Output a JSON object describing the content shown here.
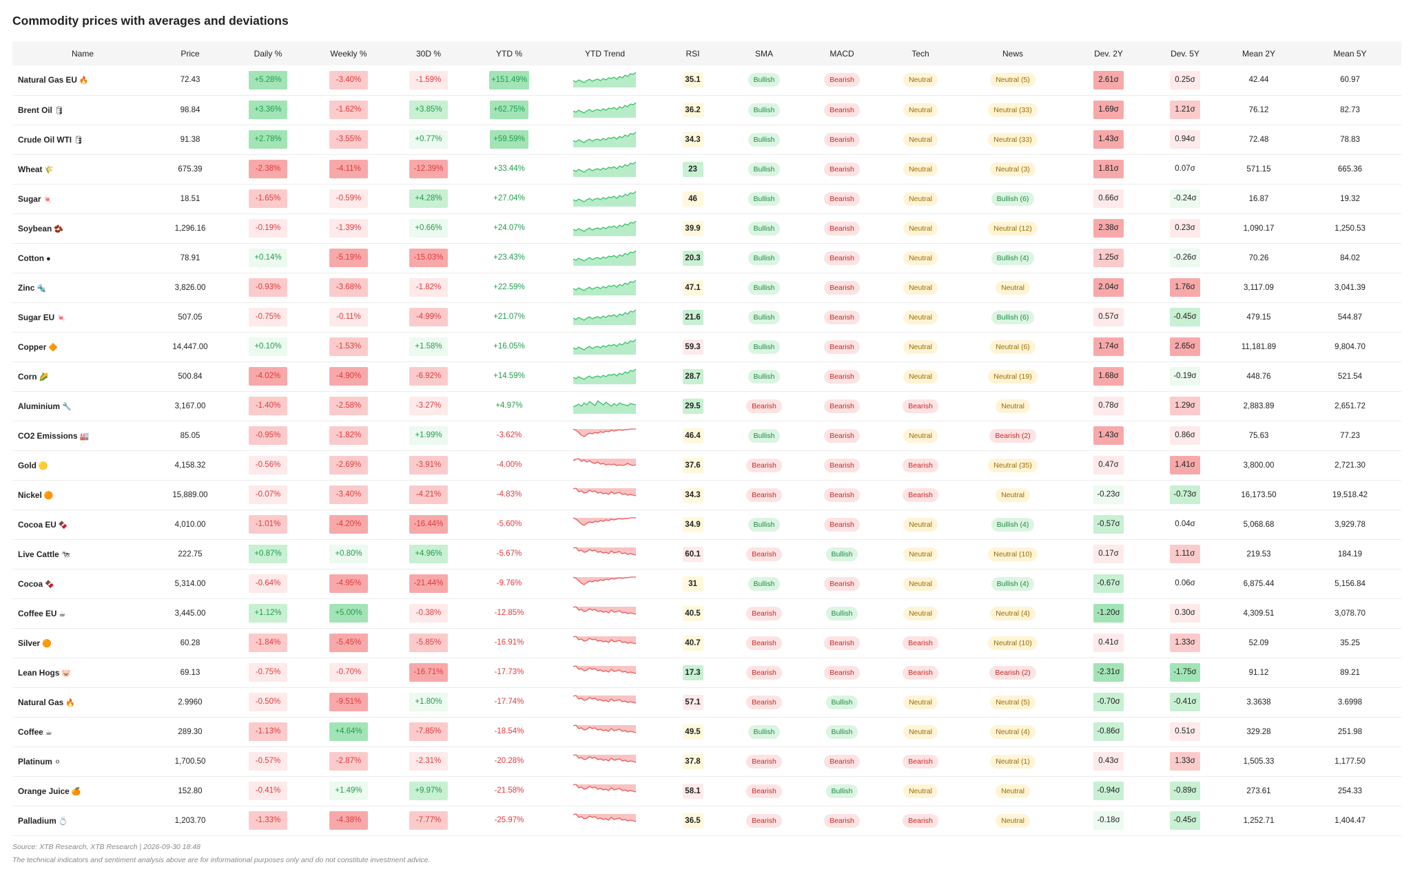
{
  "title": "Commodity prices with averages and deviations",
  "columns": [
    "Name",
    "Price",
    "Daily %",
    "Weekly %",
    "30D %",
    "YTD %",
    "YTD Trend",
    "RSI",
    "SMA",
    "MACD",
    "Tech",
    "News",
    "Dev. 2Y",
    "Dev. 5Y",
    "Mean 2Y",
    "Mean 5Y"
  ],
  "colors": {
    "positive": "#1f9d4c",
    "negative": "#e0383b",
    "bullish_bg": "#dcf5e3",
    "bearish_bg": "#fde3e3",
    "neutral_bg": "#fff4d6"
  },
  "rows": [
    {
      "name": "Natural Gas EU",
      "icon": "🔥",
      "price": "72.43",
      "daily": "+5.28%",
      "weekly": "-3.40%",
      "d30": "-1.59%",
      "ytd": "+151.49%",
      "trend": "up",
      "rsi": "35.1",
      "sma": "Bullish",
      "macd": "Bearish",
      "tech": "Neutral",
      "news": "Neutral (5)",
      "dev2y": "2.61σ",
      "dev5y": "0.25σ",
      "mean2y": "42.44",
      "mean5y": "60.97"
    },
    {
      "name": "Brent Oil",
      "icon": "🛢",
      "price": "98.84",
      "daily": "+3.36%",
      "weekly": "-1.62%",
      "d30": "+3.85%",
      "ytd": "+62.75%",
      "trend": "up",
      "rsi": "36.2",
      "sma": "Bullish",
      "macd": "Bearish",
      "tech": "Neutral",
      "news": "Neutral (33)",
      "dev2y": "1.69σ",
      "dev5y": "1.21σ",
      "mean2y": "76.12",
      "mean5y": "82.73"
    },
    {
      "name": "Crude Oil WTI",
      "icon": "🛢",
      "price": "91.38",
      "daily": "+2.78%",
      "weekly": "-3.55%",
      "d30": "+0.77%",
      "ytd": "+59.59%",
      "trend": "up",
      "rsi": "34.3",
      "sma": "Bullish",
      "macd": "Bearish",
      "tech": "Neutral",
      "news": "Neutral (33)",
      "dev2y": "1.43σ",
      "dev5y": "0.94σ",
      "mean2y": "72.48",
      "mean5y": "78.83"
    },
    {
      "name": "Wheat",
      "icon": "🌾",
      "price": "675.39",
      "daily": "-2.38%",
      "weekly": "-4.11%",
      "d30": "-12.39%",
      "ytd": "+33.44%",
      "trend": "up",
      "rsi": "23",
      "sma": "Bullish",
      "macd": "Bearish",
      "tech": "Neutral",
      "news": "Neutral (3)",
      "dev2y": "1.81σ",
      "dev5y": "0.07σ",
      "mean2y": "571.15",
      "mean5y": "665.36"
    },
    {
      "name": "Sugar",
      "icon": "🍬",
      "price": "18.51",
      "daily": "-1.65%",
      "weekly": "-0.59%",
      "d30": "+4.28%",
      "ytd": "+27.04%",
      "trend": "up",
      "rsi": "46",
      "sma": "Bullish",
      "macd": "Bearish",
      "tech": "Neutral",
      "news": "Bullish (6)",
      "dev2y": "0.66σ",
      "dev5y": "-0.24σ",
      "mean2y": "16.87",
      "mean5y": "19.32"
    },
    {
      "name": "Soybean",
      "icon": "🫘",
      "price": "1,296.16",
      "daily": "-0.19%",
      "weekly": "-1.39%",
      "d30": "+0.66%",
      "ytd": "+24.07%",
      "trend": "up",
      "rsi": "39.9",
      "sma": "Bullish",
      "macd": "Bearish",
      "tech": "Neutral",
      "news": "Neutral (12)",
      "dev2y": "2.38σ",
      "dev5y": "0.23σ",
      "mean2y": "1,090.17",
      "mean5y": "1,250.53"
    },
    {
      "name": "Cotton",
      "icon": "●",
      "price": "78.91",
      "daily": "+0.14%",
      "weekly": "-5.19%",
      "d30": "-15.03%",
      "ytd": "+23.43%",
      "trend": "up",
      "rsi": "20.3",
      "sma": "Bullish",
      "macd": "Bearish",
      "tech": "Neutral",
      "news": "Bullish (4)",
      "dev2y": "1.25σ",
      "dev5y": "-0.26σ",
      "mean2y": "70.26",
      "mean5y": "84.02"
    },
    {
      "name": "Zinc",
      "icon": "🔩",
      "price": "3,826.00",
      "daily": "-0.93%",
      "weekly": "-3.68%",
      "d30": "-1.82%",
      "ytd": "+22.59%",
      "trend": "up",
      "rsi": "47.1",
      "sma": "Bullish",
      "macd": "Bearish",
      "tech": "Neutral",
      "news": "Neutral",
      "dev2y": "2.04σ",
      "dev5y": "1.76σ",
      "mean2y": "3,117.09",
      "mean5y": "3,041.39"
    },
    {
      "name": "Sugar EU",
      "icon": "🍬",
      "price": "507.05",
      "daily": "-0.75%",
      "weekly": "-0.11%",
      "d30": "-4.99%",
      "ytd": "+21.07%",
      "trend": "up",
      "rsi": "21.6",
      "sma": "Bullish",
      "macd": "Bearish",
      "tech": "Neutral",
      "news": "Bullish (6)",
      "dev2y": "0.57σ",
      "dev5y": "-0.45σ",
      "mean2y": "479.15",
      "mean5y": "544.87"
    },
    {
      "name": "Copper",
      "icon": "🔶",
      "price": "14,447.00",
      "daily": "+0.10%",
      "weekly": "-1.53%",
      "d30": "+1.58%",
      "ytd": "+16.05%",
      "trend": "up",
      "rsi": "59.3",
      "sma": "Bullish",
      "macd": "Bearish",
      "tech": "Neutral",
      "news": "Neutral (6)",
      "dev2y": "1.74σ",
      "dev5y": "2.65σ",
      "mean2y": "11,181.89",
      "mean5y": "9,804.70"
    },
    {
      "name": "Corn",
      "icon": "🌽",
      "price": "500.84",
      "daily": "-4.02%",
      "weekly": "-4.90%",
      "d30": "-6.92%",
      "ytd": "+14.59%",
      "trend": "up",
      "rsi": "28.7",
      "sma": "Bullish",
      "macd": "Bearish",
      "tech": "Neutral",
      "news": "Neutral (19)",
      "dev2y": "1.68σ",
      "dev5y": "-0.19σ",
      "mean2y": "448.76",
      "mean5y": "521.54"
    },
    {
      "name": "Aluminium",
      "icon": "🔧",
      "price": "3,167.00",
      "daily": "-1.40%",
      "weekly": "-2.58%",
      "d30": "-3.27%",
      "ytd": "+4.97%",
      "trend": "upflat",
      "rsi": "29.5",
      "sma": "Bearish",
      "macd": "Bearish",
      "tech": "Bearish",
      "news": "Neutral",
      "dev2y": "0.78σ",
      "dev5y": "1.29σ",
      "mean2y": "2,883.89",
      "mean5y": "2,651.72"
    },
    {
      "name": "CO2 Emissions",
      "icon": "🏭",
      "price": "85.05",
      "daily": "-0.95%",
      "weekly": "-1.82%",
      "d30": "+1.99%",
      "ytd": "-3.62%",
      "trend": "dip",
      "rsi": "46.4",
      "sma": "Bullish",
      "macd": "Bearish",
      "tech": "Neutral",
      "news": "Bearish (2)",
      "dev2y": "1.43σ",
      "dev5y": "0.86σ",
      "mean2y": "75.63",
      "mean5y": "77.23"
    },
    {
      "name": "Gold",
      "icon": "🟡",
      "price": "4,158.32",
      "daily": "-0.56%",
      "weekly": "-2.69%",
      "d30": "-3.91%",
      "ytd": "-4.00%",
      "trend": "goldy",
      "rsi": "37.6",
      "sma": "Bearish",
      "macd": "Bearish",
      "tech": "Bearish",
      "news": "Neutral (35)",
      "dev2y": "0.47σ",
      "dev5y": "1.41σ",
      "mean2y": "3,800.00",
      "mean5y": "2,721.30"
    },
    {
      "name": "Nickel",
      "icon": "🟠",
      "price": "15,889.00",
      "daily": "-0.07%",
      "weekly": "-3.40%",
      "d30": "-4.21%",
      "ytd": "-4.83%",
      "trend": "down",
      "rsi": "34.3",
      "sma": "Bearish",
      "macd": "Bearish",
      "tech": "Bearish",
      "news": "Neutral",
      "dev2y": "-0.23σ",
      "dev5y": "-0.73σ",
      "mean2y": "16,173.50",
      "mean5y": "19,518.42"
    },
    {
      "name": "Cocoa EU",
      "icon": "🍫",
      "price": "4,010.00",
      "daily": "-1.01%",
      "weekly": "-4.20%",
      "d30": "-16.44%",
      "ytd": "-5.60%",
      "trend": "dip",
      "rsi": "34.9",
      "sma": "Bullish",
      "macd": "Bearish",
      "tech": "Neutral",
      "news": "Bullish (4)",
      "dev2y": "-0.57σ",
      "dev5y": "0.04σ",
      "mean2y": "5,068.68",
      "mean5y": "3,929.78"
    },
    {
      "name": "Live Cattle",
      "icon": "🐄",
      "price": "222.75",
      "daily": "+0.87%",
      "weekly": "+0.80%",
      "d30": "+4.96%",
      "ytd": "-5.67%",
      "trend": "down",
      "rsi": "60.1",
      "sma": "Bearish",
      "macd": "Bullish",
      "tech": "Neutral",
      "news": "Neutral (10)",
      "dev2y": "0.17σ",
      "dev5y": "1.11σ",
      "mean2y": "219.53",
      "mean5y": "184.19"
    },
    {
      "name": "Cocoa",
      "icon": "🍫",
      "price": "5,314.00",
      "daily": "-0.64%",
      "weekly": "-4.95%",
      "d30": "-21.44%",
      "ytd": "-9.76%",
      "trend": "dip",
      "rsi": "31",
      "sma": "Bullish",
      "macd": "Bearish",
      "tech": "Neutral",
      "news": "Bullish (4)",
      "dev2y": "-0.67σ",
      "dev5y": "0.06σ",
      "mean2y": "6,875.44",
      "mean5y": "5,156.84"
    },
    {
      "name": "Coffee EU",
      "icon": "☕",
      "price": "3,445.00",
      "daily": "+1.12%",
      "weekly": "+5.00%",
      "d30": "-0.38%",
      "ytd": "-12.85%",
      "trend": "down",
      "rsi": "40.5",
      "sma": "Bearish",
      "macd": "Bullish",
      "tech": "Neutral",
      "news": "Neutral (4)",
      "dev2y": "-1.20σ",
      "dev5y": "0.30σ",
      "mean2y": "4,309.51",
      "mean5y": "3,078.70"
    },
    {
      "name": "Silver",
      "icon": "🟠",
      "price": "60.28",
      "daily": "-1.84%",
      "weekly": "-5.45%",
      "d30": "-5.85%",
      "ytd": "-16.91%",
      "trend": "down",
      "rsi": "40.7",
      "sma": "Bearish",
      "macd": "Bearish",
      "tech": "Bearish",
      "news": "Neutral (10)",
      "dev2y": "0.41σ",
      "dev5y": "1.33σ",
      "mean2y": "52.09",
      "mean5y": "35.25"
    },
    {
      "name": "Lean Hogs",
      "icon": "🐷",
      "price": "69.13",
      "daily": "-0.75%",
      "weekly": "-0.70%",
      "d30": "-16.71%",
      "ytd": "-17.73%",
      "trend": "down",
      "rsi": "17.3",
      "sma": "Bearish",
      "macd": "Bearish",
      "tech": "Bearish",
      "news": "Bearish (2)",
      "dev2y": "-2.31σ",
      "dev5y": "-1.75σ",
      "mean2y": "91.12",
      "mean5y": "89.21"
    },
    {
      "name": "Natural Gas",
      "icon": "🔥",
      "price": "2.9960",
      "daily": "-0.50%",
      "weekly": "-9.51%",
      "d30": "+1.80%",
      "ytd": "-17.74%",
      "trend": "down",
      "rsi": "57.1",
      "sma": "Bearish",
      "macd": "Bullish",
      "tech": "Neutral",
      "news": "Neutral (5)",
      "dev2y": "-0.70σ",
      "dev5y": "-0.41σ",
      "mean2y": "3.3638",
      "mean5y": "3.6998"
    },
    {
      "name": "Coffee",
      "icon": "☕",
      "price": "289.30",
      "daily": "-1.13%",
      "weekly": "+4.64%",
      "d30": "-7.85%",
      "ytd": "-18.54%",
      "trend": "down",
      "rsi": "49.5",
      "sma": "Bullish",
      "macd": "Bullish",
      "tech": "Neutral",
      "news": "Neutral (4)",
      "dev2y": "-0.86σ",
      "dev5y": "0.51σ",
      "mean2y": "329.28",
      "mean5y": "251.98"
    },
    {
      "name": "Platinum",
      "icon": "⚪",
      "price": "1,700.50",
      "daily": "-0.57%",
      "weekly": "-2.87%",
      "d30": "-2.31%",
      "ytd": "-20.28%",
      "trend": "down",
      "rsi": "37.8",
      "sma": "Bearish",
      "macd": "Bearish",
      "tech": "Bearish",
      "news": "Neutral (1)",
      "dev2y": "0.43σ",
      "dev5y": "1.33σ",
      "mean2y": "1,505.33",
      "mean5y": "1,177.50"
    },
    {
      "name": "Orange Juice",
      "icon": "🍊",
      "price": "152.80",
      "daily": "-0.41%",
      "weekly": "+1.49%",
      "d30": "+9.97%",
      "ytd": "-21.58%",
      "trend": "down",
      "rsi": "58.1",
      "sma": "Bearish",
      "macd": "Bullish",
      "tech": "Neutral",
      "news": "Neutral",
      "dev2y": "-0.94σ",
      "dev5y": "-0.89σ",
      "mean2y": "273.61",
      "mean5y": "254.33"
    },
    {
      "name": "Palladium",
      "icon": "💍",
      "price": "1,203.70",
      "daily": "-1.33%",
      "weekly": "-4.38%",
      "d30": "-7.77%",
      "ytd": "-25.97%",
      "trend": "down",
      "rsi": "36.5",
      "sma": "Bearish",
      "macd": "Bearish",
      "tech": "Bearish",
      "news": "Neutral",
      "dev2y": "-0.18σ",
      "dev5y": "-0.45σ",
      "mean2y": "1,252.71",
      "mean5y": "1,404.47"
    }
  ],
  "footer": {
    "source": "Source: XTB Research, XTB Research | 2026-09-30 18:48",
    "disclaimer": "The technical indicators and sentiment analysis above are for informational purposes only and do not constitute investment advice."
  }
}
